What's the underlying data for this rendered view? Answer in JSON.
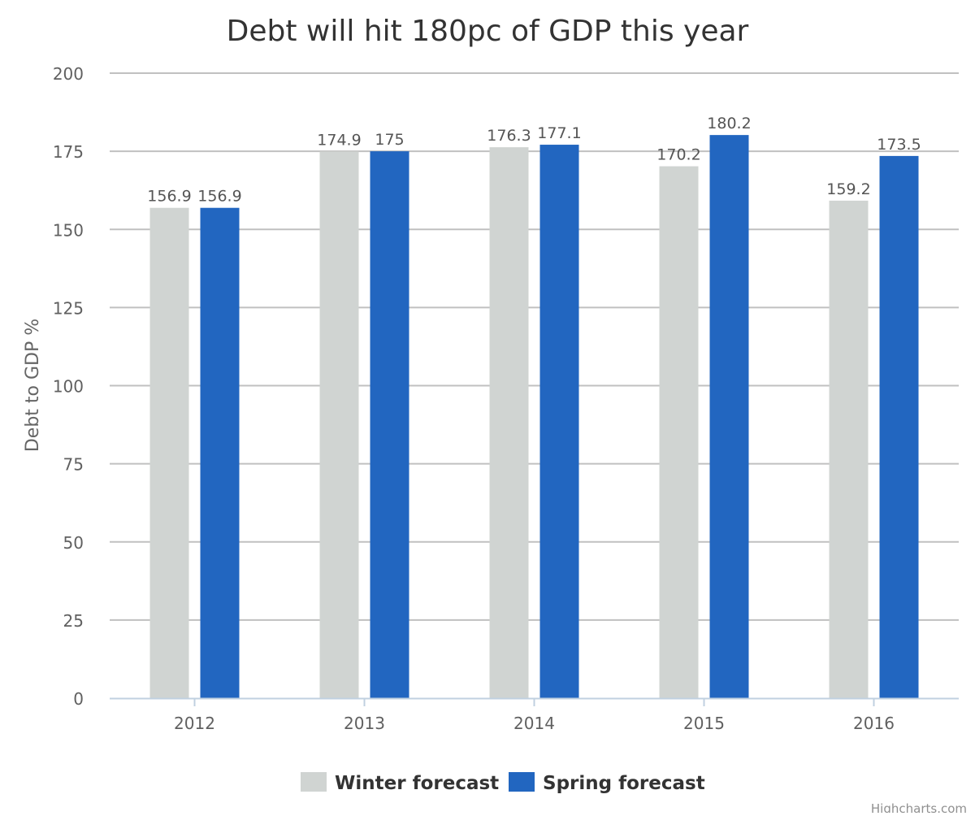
{
  "chart_data": {
    "type": "bar",
    "title": "Debt will hit 180pc of GDP this year",
    "ylabel": "Debt to GDP %",
    "xlabel": "",
    "categories": [
      "2012",
      "2013",
      "2014",
      "2015",
      "2016"
    ],
    "ylim": [
      0,
      200
    ],
    "yticks": [
      0,
      25,
      50,
      75,
      100,
      125,
      150,
      175,
      200
    ],
    "grid": true,
    "legend_position": "bottom-center",
    "series": [
      {
        "name": "Winter forecast",
        "color": "#d0d4d2",
        "values": [
          156.9,
          174.9,
          176.3,
          170.2,
          159.2
        ],
        "labels": [
          "156.9",
          "174.9",
          "176.3",
          "170.2",
          "159.2"
        ]
      },
      {
        "name": "Spring forecast",
        "color": "#2266c0",
        "values": [
          156.9,
          175,
          177.1,
          180.2,
          173.5
        ],
        "labels": [
          "156.9",
          "175",
          "177.1",
          "180.2",
          "173.5"
        ]
      }
    ]
  },
  "credits": "Highcharts.com"
}
